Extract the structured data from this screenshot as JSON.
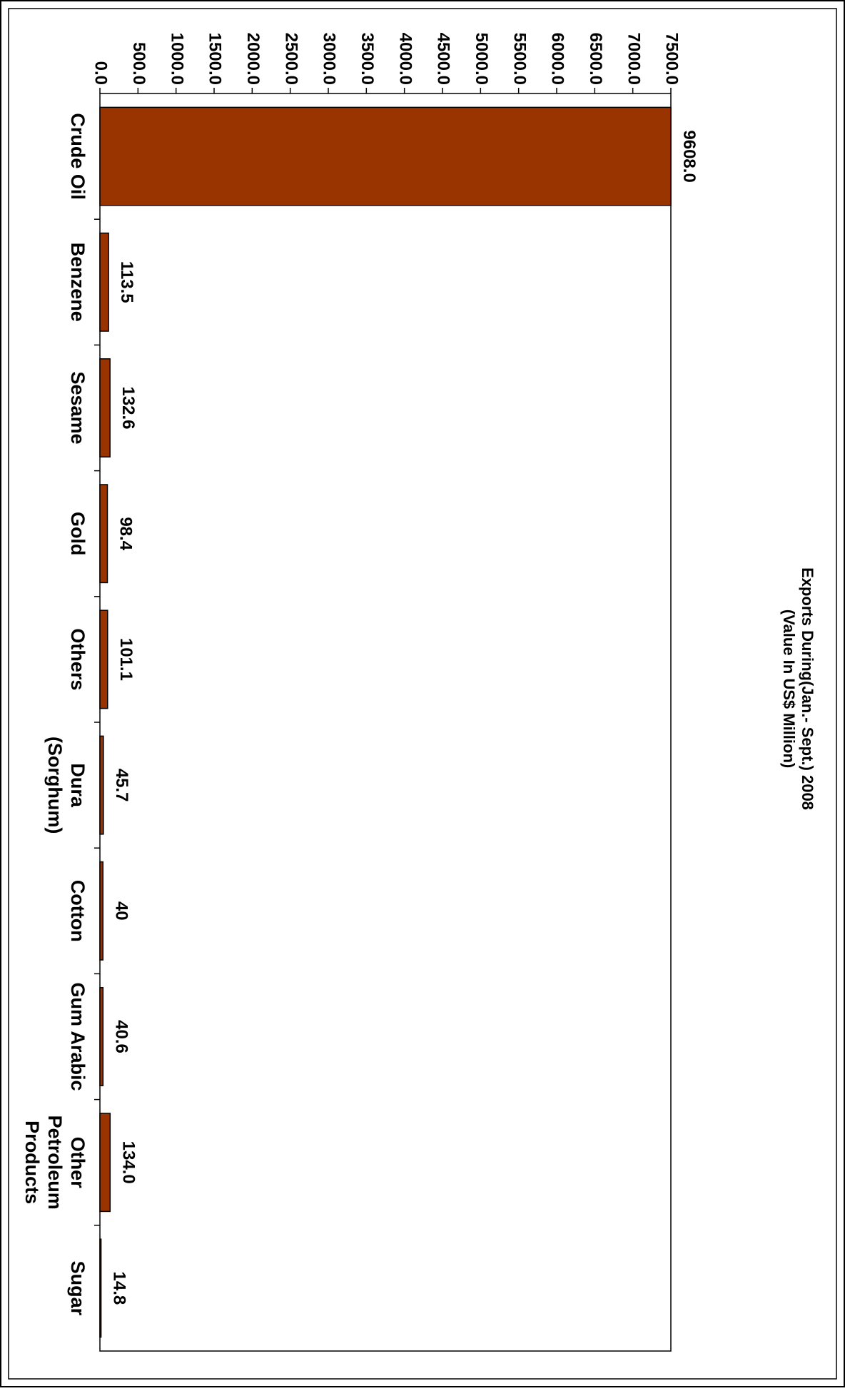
{
  "chart_data": {
    "type": "bar",
    "orientation": "vertical",
    "rotation": "90deg clockwise",
    "title_lines": [
      "Exports During(Jan.- Sept.) 2008",
      "(Value In US$ Million)"
    ],
    "categories": [
      [
        "Crude Oil"
      ],
      [
        "Benzene"
      ],
      [
        "Sesame"
      ],
      [
        "Gold"
      ],
      [
        "Others"
      ],
      [
        "Dura",
        "(Sorghum)"
      ],
      [
        "Cotton"
      ],
      [
        "Gum Arabic"
      ],
      [
        "Other",
        "Petroleum",
        "Products"
      ],
      [
        "Sugar"
      ]
    ],
    "values": [
      9608.0,
      113.5,
      132.6,
      98.4,
      101.1,
      45.7,
      40,
      40.6,
      134.0,
      14.8
    ],
    "data_labels": [
      "9608.0",
      "113.5",
      "132.6",
      "98.4",
      "101.1",
      "45.7",
      "40",
      "40.6",
      "134.0",
      "14.8"
    ],
    "ylim": [
      0,
      7500
    ],
    "yticks": [
      0,
      500,
      1000,
      1500,
      2000,
      2500,
      3000,
      3500,
      4000,
      4500,
      5000,
      5500,
      6000,
      6500,
      7000,
      7500
    ],
    "ytick_labels": [
      "0.0",
      "500.0",
      "1000.0",
      "1500.0",
      "2000.0",
      "2500.0",
      "3000.0",
      "3500.0",
      "4000.0",
      "4500.0",
      "5000.0",
      "5500.0",
      "6000.0",
      "6500.0",
      "7000.0",
      "7500.0"
    ],
    "bar_color": "#993300",
    "grid": false,
    "legend": "none"
  }
}
